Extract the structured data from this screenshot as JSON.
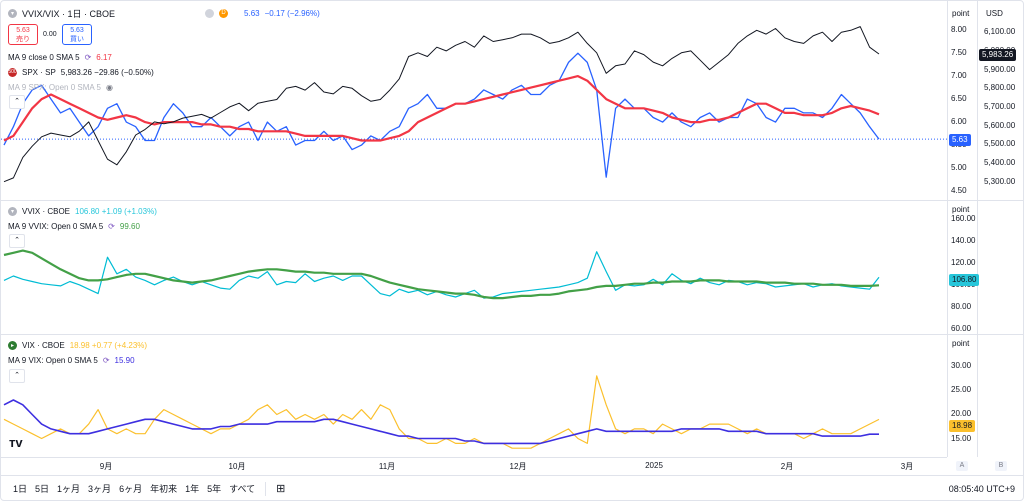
{
  "colors": {
    "vvix_vix_line": "#2962ff",
    "ma_red": "#f23645",
    "spx_black": "#131722",
    "vvix_cyan": "#00bcd4",
    "vvix_ma_green": "#43a047",
    "vix_yellow": "#fbc02d",
    "vix_ma_blue": "#3d2fe0",
    "last_label_vvix_vix": "#2962ff",
    "last_label_vvix": "#26c6da",
    "last_label_vix": "#fbc02d"
  },
  "pane1": {
    "symbol": "VVIX/VIX · 1日 · CBOE",
    "d_badge": "D",
    "price": "5.63",
    "change": "−0.17 (−2.96%)",
    "sell_price": "5.63",
    "sell_label": "売り",
    "spread": "0.00",
    "buy_price": "5.63",
    "buy_label": "買い",
    "ma_label": "MA 9 close 0 SMA 5",
    "ma_value": "6.17",
    "spx_badge": "500",
    "spx_label": "SPX · SP",
    "spx_value": "5,983.26 −29.86 (−0.50%)",
    "spx_ma_label": "MA 9 SPX: Open 0 SMA 5",
    "scale_header": "point",
    "scale2_header": "USD",
    "left_ticks": [
      "8.00",
      "7.50",
      "7.00",
      "6.50",
      "6.00",
      "5.50",
      "5.00",
      "4.50"
    ],
    "right_ticks": [
      "6,100.00",
      "6,000.00",
      "5,900.00",
      "5,800.00",
      "5,700.00",
      "5,600.00",
      "5,500.00",
      "5,400.00",
      "5,300.00"
    ],
    "last_value_label": "5.63",
    "spx_last_label": "5,983.26"
  },
  "pane2": {
    "symbol": "VVIX · CBOE",
    "value": "106.80 +1.09 (+1.03%)",
    "ma_label": "MA 9 VVIX: Open 0 SMA 5",
    "ma_value": "99.60",
    "scale_header": "point",
    "ticks": [
      "160.00",
      "140.00",
      "120.00",
      "100.00",
      "80.00",
      "60.00"
    ],
    "last_value_label": "106.80"
  },
  "pane3": {
    "symbol": "VIX · CBOE",
    "value": "18.98 +0.77 (+4.23%)",
    "ma_label": "MA 9 VIX: Open 0 SMA 5",
    "ma_value": "15.90",
    "scale_header": "point",
    "ticks": [
      "30.00",
      "25.00",
      "20.00",
      "15.00"
    ],
    "last_value_label": "18.98"
  },
  "xaxis": {
    "labels": [
      "9月",
      "10月",
      "11月",
      "12月",
      "2025",
      "2月",
      "3月"
    ],
    "a_label": "A",
    "b_label": "B"
  },
  "bottom": {
    "ranges": [
      "1日",
      "5日",
      "1ヶ月",
      "3ヶ月",
      "6ヶ月",
      "年初来",
      "1年",
      "5年",
      "すべて"
    ],
    "clock": "08:05:40 UTC+9"
  },
  "chart_data": [
    {
      "type": "line",
      "title": "VVIX/VIX · 1日 · CBOE",
      "ylim": [
        4.5,
        8.2
      ],
      "series": [
        {
          "name": "VVIX/VIX",
          "values": [
            5.5,
            5.9,
            6.4,
            6.7,
            6.8,
            6.5,
            6.2,
            6.3,
            6.0,
            5.7,
            5.9,
            6.3,
            6.4,
            6.0,
            5.9,
            5.6,
            5.6,
            6.1,
            6.4,
            6.2,
            5.9,
            5.9,
            6.1,
            5.9,
            5.7,
            5.9,
            6.0,
            5.6,
            6.0,
            5.8,
            5.9,
            5.5,
            5.6,
            5.6,
            5.8,
            5.6,
            5.7,
            5.4,
            5.5,
            5.7,
            5.6,
            5.8,
            5.9,
            6.3,
            6.4,
            6.6,
            6.3,
            6.3,
            6.4,
            6.4,
            6.5,
            6.7,
            6.6,
            6.5,
            6.7,
            6.8,
            6.6,
            6.6,
            6.8,
            6.9,
            7.3,
            7.5,
            7.3,
            6.7,
            4.8,
            6.3,
            6.5,
            6.3,
            6.3,
            6.1,
            6.0,
            6.2,
            6.0,
            5.9,
            6.1,
            6.2,
            6.0,
            6.1,
            6.1,
            6.5,
            6.4,
            6.1,
            6.0,
            6.3,
            6.3,
            6.2,
            6.2,
            6.1,
            6.3,
            6.6,
            6.4,
            6.2,
            5.9,
            5.63
          ]
        },
        {
          "name": "MA 9 close 0 SMA 5",
          "values": [
            5.6,
            5.7,
            6.0,
            6.3,
            6.5,
            6.6,
            6.5,
            6.4,
            6.3,
            6.2,
            6.1,
            6.05,
            6.1,
            6.15,
            6.1,
            6.0,
            5.95,
            6.0,
            6.0,
            6.0,
            6.0,
            5.95,
            5.95,
            5.9,
            5.9,
            5.85,
            5.85,
            5.8,
            5.8,
            5.8,
            5.8,
            5.75,
            5.7,
            5.7,
            5.7,
            5.7,
            5.7,
            5.65,
            5.6,
            5.6,
            5.6,
            5.65,
            5.7,
            5.8,
            6.0,
            6.1,
            6.2,
            6.3,
            6.4,
            6.4,
            6.45,
            6.5,
            6.55,
            6.6,
            6.65,
            6.7,
            6.75,
            6.8,
            6.85,
            6.9,
            6.95,
            7.0,
            6.9,
            6.7,
            6.5,
            6.4,
            6.3,
            6.3,
            6.3,
            6.25,
            6.2,
            6.1,
            6.05,
            6.0,
            6.0,
            6.05,
            6.05,
            6.1,
            6.2,
            6.3,
            6.4,
            6.4,
            6.3,
            6.2,
            6.2,
            6.15,
            6.15,
            6.15,
            6.2,
            6.3,
            6.35,
            6.3,
            6.25,
            6.17
          ]
        },
        {
          "name": "SPX · SP",
          "values": [
            5300,
            5320,
            5430,
            5490,
            5540,
            5560,
            5550,
            5540,
            5570,
            5620,
            5520,
            5420,
            5390,
            5460,
            5550,
            5580,
            5620,
            5610,
            5620,
            5640,
            5650,
            5660,
            5640,
            5670,
            5700,
            5720,
            5680,
            5720,
            5730,
            5740,
            5800,
            5810,
            5790,
            5830,
            5780,
            5770,
            5810,
            5800,
            5760,
            5730,
            5740,
            5790,
            5850,
            5970,
            5990,
            5970,
            6020,
            6000,
            6030,
            6050,
            6020,
            6080,
            6050,
            6060,
            6070,
            6090,
            6090,
            6070,
            6040,
            6050,
            6070,
            6100,
            6040,
            5990,
            5880,
            5920,
            5930,
            6000,
            5980,
            5940,
            5920,
            5960,
            5990,
            6000,
            5950,
            5900,
            5940,
            5980,
            6040,
            6080,
            6110,
            6090,
            6120,
            6070,
            6050,
            6040,
            6080,
            6100,
            6050,
            6100,
            6110,
            6130,
            6020,
            5983.26
          ]
        }
      ]
    },
    {
      "type": "line",
      "title": "VVIX · CBOE",
      "ylim": [
        60,
        165
      ],
      "series": [
        {
          "name": "VVIX",
          "values": [
            104,
            108,
            105,
            103,
            101,
            100,
            99,
            103,
            100,
            96,
            92,
            125,
            110,
            114,
            107,
            104,
            100,
            104,
            107,
            103,
            100,
            103,
            100,
            97,
            96,
            104,
            108,
            106,
            112,
            100,
            103,
            102,
            110,
            103,
            106,
            108,
            104,
            108,
            108,
            100,
            92,
            90,
            96,
            93,
            95,
            91,
            94,
            91,
            89,
            92,
            95,
            88,
            89,
            92,
            93,
            94,
            95,
            96,
            97,
            98,
            100,
            102,
            106,
            130,
            112,
            95,
            100,
            99,
            100,
            105,
            100,
            110,
            104,
            101,
            106,
            102,
            100,
            104,
            103,
            100,
            102,
            101,
            98,
            99,
            100,
            101,
            98,
            100,
            101,
            99,
            98,
            97,
            96,
            106.8
          ]
        },
        {
          "name": "MA 9 VVIX: Open 0 SMA 5",
          "values": [
            127,
            129,
            131,
            129,
            124,
            119,
            114,
            110,
            106,
            104,
            104,
            105,
            107,
            109,
            110,
            110,
            108,
            106,
            104,
            103,
            102,
            103,
            104,
            106,
            108,
            110,
            112,
            113,
            114,
            114,
            113,
            112,
            112,
            111,
            111,
            110,
            110,
            110,
            110,
            108,
            105,
            102,
            100,
            98,
            96,
            95,
            94,
            93,
            92,
            92,
            91,
            89,
            88,
            88,
            89,
            90,
            90,
            91,
            91,
            92,
            94,
            95,
            96,
            98,
            99,
            99,
            100,
            101,
            101,
            102,
            102,
            103,
            103,
            103,
            104,
            104,
            104,
            103,
            103,
            103,
            103,
            102,
            102,
            102,
            101,
            101,
            101,
            100,
            100,
            100,
            99,
            99,
            99,
            99.6
          ]
        }
      ]
    },
    {
      "type": "line",
      "title": "VIX · CBOE",
      "ylim": [
        12,
        34
      ],
      "series": [
        {
          "name": "VIX",
          "values": [
            19,
            18,
            17,
            16,
            15,
            16,
            17,
            16,
            16,
            18,
            21,
            17,
            16,
            17,
            16,
            16,
            19,
            21,
            20,
            19,
            18,
            17,
            16,
            17,
            17,
            18,
            19,
            21,
            22,
            20,
            21,
            19,
            20,
            19,
            20,
            18,
            20,
            19,
            21,
            19,
            22,
            21,
            17,
            15,
            15,
            14,
            14,
            15,
            14,
            14,
            15,
            14,
            14,
            14,
            13,
            13,
            13,
            14,
            15,
            16,
            17,
            15,
            14,
            28,
            22,
            17,
            16,
            17,
            17,
            16,
            18,
            17,
            16,
            17,
            17,
            18,
            18,
            18,
            17,
            16,
            17,
            16,
            16,
            16,
            16,
            15,
            16,
            17,
            16,
            16,
            16,
            17,
            18,
            18.98
          ]
        },
        {
          "name": "MA 9 VIX: Open 0 SMA 5",
          "values": [
            22,
            23,
            22,
            20,
            18,
            17,
            16.5,
            16,
            16,
            16,
            16.5,
            17,
            17.5,
            18,
            18.5,
            19,
            19,
            18.5,
            18,
            17.5,
            17,
            17,
            17,
            17.5,
            17.5,
            18,
            18,
            18,
            18,
            18.5,
            18.5,
            18.5,
            18.5,
            18.5,
            19,
            19,
            18.5,
            18,
            17.5,
            17,
            16.5,
            16,
            15.5,
            15.5,
            15,
            15,
            15,
            15,
            15,
            14.5,
            14.5,
            14,
            14,
            14,
            14,
            14,
            14,
            14,
            14.5,
            15,
            15.5,
            16,
            16.5,
            17,
            16.5,
            16.5,
            16.5,
            16.5,
            16.5,
            16.5,
            16.5,
            16.5,
            17,
            17,
            17,
            17,
            17,
            16.5,
            16.5,
            16.5,
            16.5,
            16,
            16,
            16,
            16,
            16,
            16,
            15.5,
            15.5,
            15.5,
            15.5,
            15.5,
            15.9,
            15.9
          ]
        }
      ]
    }
  ]
}
